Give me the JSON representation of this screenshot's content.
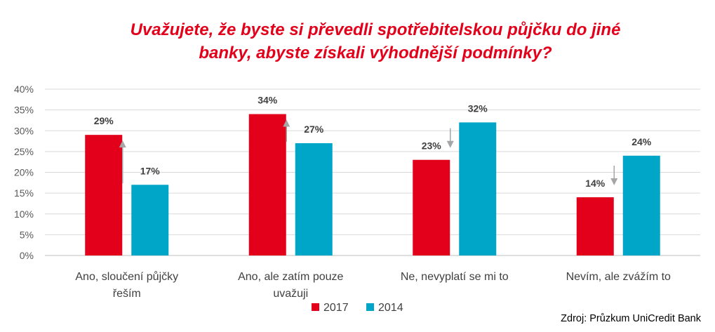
{
  "title_line1": "Uvažujete, že byste si převedli spotřebitelskou půjčku do jiné",
  "title_line2": "banky, abyste získali výhodnější podmínky?",
  "source": "Zdroj: Průzkum UniCredit Bank",
  "colors": {
    "title": "#e2001a",
    "series_2017": "#e2001a",
    "series_2014": "#00a6c8",
    "arrow": "#a6a6a6"
  },
  "chart_data": {
    "type": "bar",
    "categories": [
      [
        "Ano, sloučení půjčky",
        "řeším"
      ],
      [
        "Ano, ale zatím pouze",
        "uvažuji"
      ],
      [
        "Ne, nevyplatí se mi to"
      ],
      [
        "Nevím, ale zvážím to"
      ]
    ],
    "series": [
      {
        "name": "2017",
        "values": [
          29,
          34,
          23,
          14
        ],
        "labels": [
          "29%",
          "34%",
          "23%",
          "14%"
        ],
        "color": "#e2001a"
      },
      {
        "name": "2014",
        "values": [
          17,
          27,
          32,
          24
        ],
        "labels": [
          "17%",
          "27%",
          "32%",
          "24%"
        ],
        "color": "#00a6c8"
      }
    ],
    "y_ticks": [
      "0%",
      "5%",
      "10%",
      "15%",
      "20%",
      "25%",
      "30%",
      "35%",
      "40%"
    ],
    "ylim": [
      0,
      40
    ],
    "y_unit": "%",
    "grid": true,
    "legend": "bottom-center",
    "arrows": [
      "up",
      "up",
      "down",
      "down"
    ]
  }
}
